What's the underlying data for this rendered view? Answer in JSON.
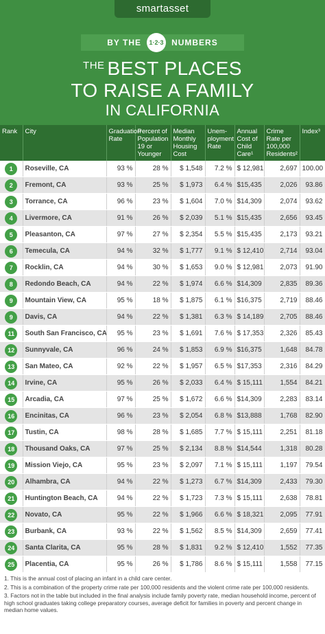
{
  "header": {
    "logo": "smartasset",
    "banner_left": "BY THE",
    "banner_badge": "1·2·3",
    "banner_right": "NUMBERS",
    "title_small": "THE",
    "title_line1": "BEST PLACES",
    "title_line2": "TO RAISE A FAMILY",
    "title_line3": "IN CALIFORNIA"
  },
  "table": {
    "headers": [
      "Rank",
      "City",
      "Graduation Rate",
      "Percent of Population 19 or Younger",
      "Median Monthly Housing Cost",
      "Unem-ployment Rate",
      "Annual Cost of Child Care¹",
      "Crime Rate per 100,000 Residents²",
      "Index³"
    ],
    "rows": [
      [
        "1",
        "Roseville, CA",
        "93 %",
        "28 %",
        "$ 1,548",
        "7.2 %",
        "$ 12,981",
        "2,697",
        "100.00"
      ],
      [
        "2",
        "Fremont, CA",
        "93 %",
        "25 %",
        "$ 1,973",
        "6.4 %",
        "$15,435",
        "2,026",
        "93.86"
      ],
      [
        "3",
        "Torrance, CA",
        "96 %",
        "23 %",
        "$ 1,604",
        "7.0 %",
        "$14,309",
        "2,074",
        "93.62"
      ],
      [
        "4",
        "Livermore, CA",
        "91 %",
        "26 %",
        "$ 2,039",
        "5.1 %",
        "$15,435",
        "2,656",
        "93.45"
      ],
      [
        "5",
        "Pleasanton, CA",
        "97 %",
        "27 %",
        "$ 2,354",
        "5.5 %",
        "$15,435",
        "2,173",
        "93.21"
      ],
      [
        "6",
        "Temecula, CA",
        "94 %",
        "32 %",
        "$ 1,777",
        "9.1 %",
        "$ 12,410",
        "2,714",
        "93.04"
      ],
      [
        "7",
        "Rocklin, CA",
        "94 %",
        "30 %",
        "$ 1,653",
        "9.0 %",
        "$ 12,981",
        "2,073",
        "91.90"
      ],
      [
        "8",
        "Redondo Beach, CA",
        "94 %",
        "22 %",
        "$ 1,974",
        "6.6 %",
        "$14,309",
        "2,835",
        "89.36"
      ],
      [
        "9",
        "Mountain View, CA",
        "95 %",
        "18 %",
        "$ 1,875",
        "6.1 %",
        "$16,375",
        "2,719",
        "88.46"
      ],
      [
        "9",
        "Davis, CA",
        "94 %",
        "22 %",
        "$ 1,381",
        "6.3 %",
        "$ 14,189",
        "2,705",
        "88.46"
      ],
      [
        "11",
        "South San Francisco, CA",
        "95 %",
        "23 %",
        "$ 1,691",
        "7.6 %",
        "$ 17,353",
        "2,326",
        "85.43"
      ],
      [
        "12",
        "Sunnyvale, CA",
        "96 %",
        "24 %",
        "$ 1,853",
        "6.9 %",
        "$16,375",
        "1,648",
        "84.78"
      ],
      [
        "13",
        "San Mateo, CA",
        "92 %",
        "22 %",
        "$ 1,957",
        "6.5 %",
        "$17,353",
        "2,316",
        "84.29"
      ],
      [
        "14",
        "Irvine, CA",
        "95 %",
        "26 %",
        "$ 2,033",
        "6.4 %",
        "$ 15,111",
        "1,554",
        "84.21"
      ],
      [
        "15",
        "Arcadia, CA",
        "97 %",
        "25 %",
        "$ 1,672",
        "6.6 %",
        "$14,309",
        "2,283",
        "83.14"
      ],
      [
        "16",
        "Encinitas, CA",
        "96 %",
        "23 %",
        "$ 2,054",
        "6.8 %",
        "$13,888",
        "1,768",
        "82.90"
      ],
      [
        "17",
        "Tustin, CA",
        "98 %",
        "28 %",
        "$ 1,685",
        "7.7 %",
        "$ 15,111",
        "2,251",
        "81.18"
      ],
      [
        "18",
        "Thousand Oaks, CA",
        "97 %",
        "25 %",
        "$ 2,134",
        "8.8 %",
        "$14,544",
        "1,318",
        "80.28"
      ],
      [
        "19",
        "Mission Viejo, CA",
        "95 %",
        "23 %",
        "$ 2,097",
        "7.1 %",
        "$ 15,111",
        "1,197",
        "79.54"
      ],
      [
        "20",
        "Alhambra, CA",
        "94 %",
        "22 %",
        "$ 1,273",
        "6.7 %",
        "$14,309",
        "2,433",
        "79.30"
      ],
      [
        "21",
        "Huntington Beach, CA",
        "94 %",
        "22 %",
        "$ 1,723",
        "7.3 %",
        "$ 15,111",
        "2,638",
        "78.81"
      ],
      [
        "22",
        "Novato, CA",
        "95 %",
        "22 %",
        "$ 1,966",
        "6.6 %",
        "$ 18,321",
        "2,095",
        "77.91"
      ],
      [
        "23",
        "Burbank, CA",
        "93 %",
        "22 %",
        "$ 1,562",
        "8.5 %",
        "$14,309",
        "2,659",
        "77.41"
      ],
      [
        "24",
        "Santa Clarita, CA",
        "95 %",
        "28 %",
        "$ 1,831",
        "9.2 %",
        "$ 12,410",
        "1,552",
        "77.35"
      ],
      [
        "25",
        "Placentia, CA",
        "95 %",
        "26 %",
        "$ 1,786",
        "8.6 %",
        "$ 15,111",
        "1,558",
        "77.15"
      ]
    ]
  },
  "footnotes": [
    "1. This is the annual cost of placing an infant in a child care center.",
    "2. This is a combination of the property crime rate per 100,000 residents and the violent crime rate per 100,000 residents.",
    "3. Factors not in the table but included in the final analysis include family poverty rate, median household income, percent of high school graduates taking college preparatory courses, average deficit for families in poverty and percent change in median home values."
  ]
}
